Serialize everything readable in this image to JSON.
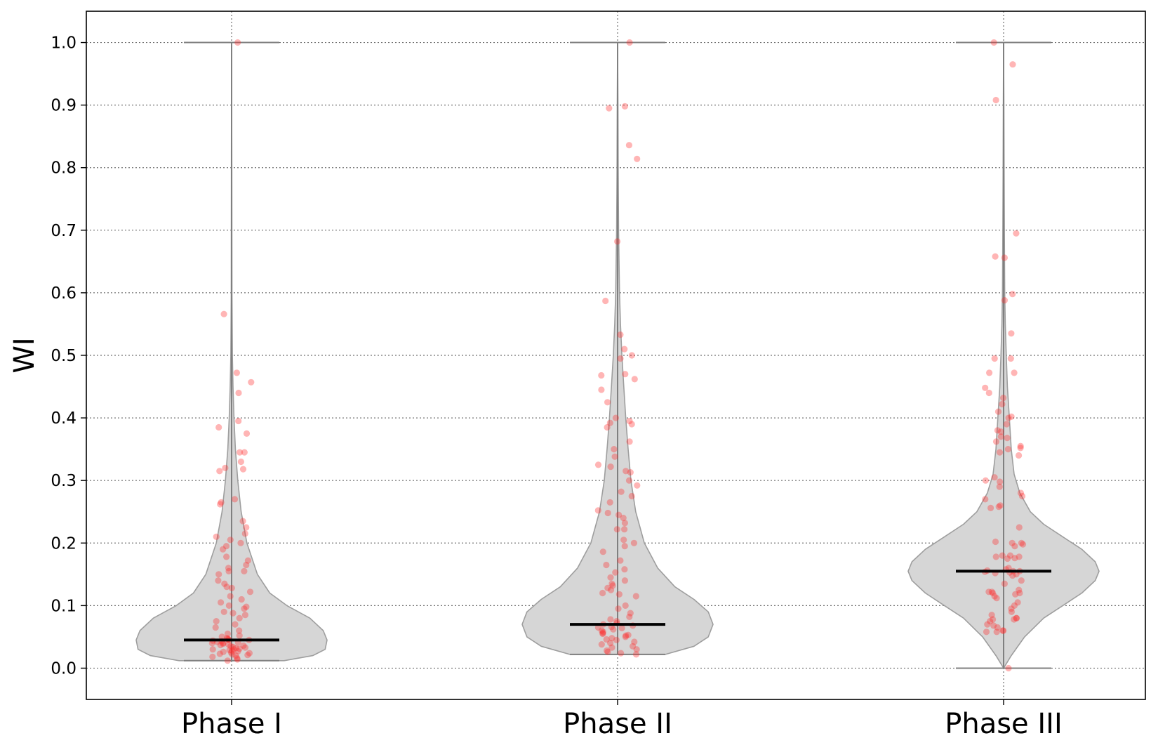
{
  "chart_data": {
    "type": "violin",
    "ylabel": "WI",
    "ylim": [
      -0.05,
      1.05
    ],
    "yticks": [
      "0.0",
      "0.1",
      "0.2",
      "0.3",
      "0.4",
      "0.5",
      "0.6",
      "0.7",
      "0.8",
      "0.9",
      "1.0"
    ],
    "grid": true,
    "categories": [
      "Phase I",
      "Phase II",
      "Phase III"
    ],
    "colors": {
      "violin_fill": "#d6d6d6",
      "violin_edge": "#9e9e9e",
      "points": "#ff2a2a",
      "median": "#000000",
      "grid": "#707070"
    },
    "violins": [
      {
        "name": "Phase I",
        "min": 0.012,
        "max": 1.0,
        "median": 0.045,
        "density": [
          [
            0.012,
            0.55
          ],
          [
            0.02,
            0.85
          ],
          [
            0.03,
            0.98
          ],
          [
            0.045,
            1.0
          ],
          [
            0.06,
            0.96
          ],
          [
            0.08,
            0.82
          ],
          [
            0.1,
            0.58
          ],
          [
            0.12,
            0.4
          ],
          [
            0.15,
            0.27
          ],
          [
            0.2,
            0.16
          ],
          [
            0.25,
            0.1
          ],
          [
            0.3,
            0.065
          ],
          [
            0.35,
            0.04
          ],
          [
            0.4,
            0.025
          ],
          [
            0.45,
            0.015
          ],
          [
            0.5,
            0.008
          ],
          [
            0.6,
            0.004
          ],
          [
            0.8,
            0.002
          ],
          [
            1.0,
            0.0
          ]
        ],
        "points": [
          1.0,
          0.566,
          0.472,
          0.457,
          0.44,
          0.395,
          0.385,
          0.375,
          0.345,
          0.345,
          0.33,
          0.32,
          0.318,
          0.315,
          0.27,
          0.265,
          0.262,
          0.235,
          0.225,
          0.215,
          0.21,
          0.205,
          0.2,
          0.195,
          0.19,
          0.178,
          0.172,
          0.165,
          0.16,
          0.155,
          0.155,
          0.15,
          0.14,
          0.135,
          0.13,
          0.128,
          0.122,
          0.115,
          0.11,
          0.105,
          0.1,
          0.098,
          0.095,
          0.09,
          0.088,
          0.085,
          0.08,
          0.075,
          0.07,
          0.065,
          0.06,
          0.055,
          0.052,
          0.05,
          0.048,
          0.047,
          0.046,
          0.045,
          0.045,
          0.044,
          0.043,
          0.042,
          0.041,
          0.04,
          0.04,
          0.039,
          0.038,
          0.037,
          0.036,
          0.035,
          0.034,
          0.033,
          0.032,
          0.031,
          0.03,
          0.03,
          0.029,
          0.028,
          0.027,
          0.026,
          0.025,
          0.024,
          0.023,
          0.022,
          0.021,
          0.02,
          0.018,
          0.016,
          0.014,
          0.012
        ]
      },
      {
        "name": "Phase II",
        "min": 0.022,
        "max": 1.0,
        "median": 0.07,
        "density": [
          [
            0.022,
            0.5
          ],
          [
            0.035,
            0.8
          ],
          [
            0.05,
            0.95
          ],
          [
            0.07,
            1.0
          ],
          [
            0.09,
            0.95
          ],
          [
            0.11,
            0.8
          ],
          [
            0.13,
            0.6
          ],
          [
            0.16,
            0.42
          ],
          [
            0.2,
            0.28
          ],
          [
            0.25,
            0.19
          ],
          [
            0.3,
            0.14
          ],
          [
            0.35,
            0.11
          ],
          [
            0.4,
            0.085
          ],
          [
            0.45,
            0.065
          ],
          [
            0.5,
            0.045
          ],
          [
            0.55,
            0.03
          ],
          [
            0.6,
            0.02
          ],
          [
            0.7,
            0.01
          ],
          [
            0.8,
            0.006
          ],
          [
            0.9,
            0.004
          ],
          [
            1.0,
            0.0
          ]
        ],
        "points": [
          1.0,
          0.898,
          0.895,
          0.836,
          0.814,
          0.682,
          0.587,
          0.533,
          0.51,
          0.5,
          0.495,
          0.47,
          0.468,
          0.462,
          0.445,
          0.425,
          0.4,
          0.395,
          0.392,
          0.39,
          0.385,
          0.362,
          0.35,
          0.338,
          0.325,
          0.322,
          0.315,
          0.313,
          0.3,
          0.292,
          0.282,
          0.275,
          0.265,
          0.252,
          0.248,
          0.245,
          0.24,
          0.232,
          0.222,
          0.222,
          0.205,
          0.2,
          0.195,
          0.186,
          0.172,
          0.165,
          0.158,
          0.153,
          0.145,
          0.14,
          0.135,
          0.132,
          0.128,
          0.125,
          0.12,
          0.118,
          0.115,
          0.1,
          0.095,
          0.088,
          0.082,
          0.078,
          0.075,
          0.072,
          0.07,
          0.068,
          0.066,
          0.065,
          0.064,
          0.062,
          0.06,
          0.058,
          0.056,
          0.055,
          0.053,
          0.052,
          0.05,
          0.048,
          0.046,
          0.045,
          0.042,
          0.04,
          0.038,
          0.035,
          0.033,
          0.03,
          0.028,
          0.026,
          0.024,
          0.022
        ]
      },
      {
        "name": "Phase III",
        "min": 0.0,
        "max": 1.0,
        "median": 0.155,
        "density": [
          [
            0.0,
            0.0
          ],
          [
            0.02,
            0.08
          ],
          [
            0.05,
            0.22
          ],
          [
            0.08,
            0.42
          ],
          [
            0.1,
            0.62
          ],
          [
            0.12,
            0.82
          ],
          [
            0.14,
            0.96
          ],
          [
            0.155,
            1.0
          ],
          [
            0.17,
            0.96
          ],
          [
            0.19,
            0.82
          ],
          [
            0.21,
            0.62
          ],
          [
            0.23,
            0.42
          ],
          [
            0.25,
            0.28
          ],
          [
            0.28,
            0.17
          ],
          [
            0.31,
            0.11
          ],
          [
            0.35,
            0.08
          ],
          [
            0.4,
            0.06
          ],
          [
            0.45,
            0.04
          ],
          [
            0.5,
            0.028
          ],
          [
            0.55,
            0.018
          ],
          [
            0.6,
            0.012
          ],
          [
            0.7,
            0.008
          ],
          [
            0.8,
            0.005
          ],
          [
            0.9,
            0.003
          ],
          [
            1.0,
            0.0
          ]
        ],
        "points": [
          1.0,
          0.965,
          0.908,
          0.695,
          0.658,
          0.656,
          0.598,
          0.588,
          0.535,
          0.495,
          0.495,
          0.472,
          0.472,
          0.448,
          0.44,
          0.432,
          0.422,
          0.41,
          0.402,
          0.4,
          0.39,
          0.38,
          0.378,
          0.37,
          0.368,
          0.362,
          0.355,
          0.352,
          0.35,
          0.345,
          0.34,
          0.305,
          0.3,
          0.298,
          0.29,
          0.28,
          0.275,
          0.27,
          0.26,
          0.258,
          0.256,
          0.225,
          0.202,
          0.2,
          0.2,
          0.198,
          0.195,
          0.18,
          0.18,
          0.178,
          0.178,
          0.176,
          0.175,
          0.16,
          0.158,
          0.156,
          0.155,
          0.155,
          0.154,
          0.153,
          0.152,
          0.15,
          0.148,
          0.14,
          0.135,
          0.125,
          0.122,
          0.122,
          0.12,
          0.12,
          0.118,
          0.115,
          0.112,
          0.105,
          0.1,
          0.095,
          0.09,
          0.085,
          0.08,
          0.08,
          0.078,
          0.078,
          0.075,
          0.07,
          0.068,
          0.065,
          0.06,
          0.06,
          0.058,
          0.058,
          0.0
        ]
      }
    ]
  }
}
